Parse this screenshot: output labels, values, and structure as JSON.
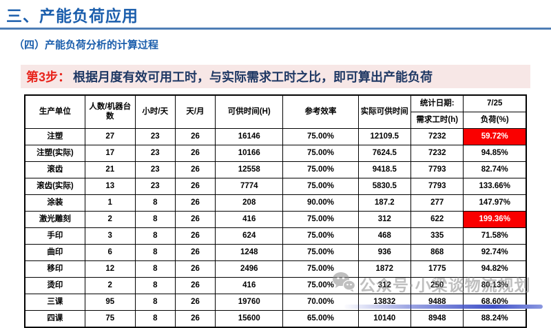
{
  "page": {
    "title": "三、产能负荷应用",
    "subtitle": "（四）产能负荷分析的计算过程",
    "banner": {
      "step_label": "第3步：",
      "text": "根据月度有效可用工时，与实际需求工时之比，即可算出产能负荷"
    }
  },
  "colors": {
    "accent_blue": "#1B5EAC",
    "underline_blue": "#4E7DB5",
    "banner_bg": "#F7E7E6",
    "step_red": "#E8251D",
    "banner_navy": "#1F3864",
    "highlight_red": "#FA0000",
    "watermark_gray": "#8C8C8C",
    "bottom_bar_blue": "#4152C8"
  },
  "table": {
    "headers": {
      "unit": "生产单位",
      "count": "人数/机器台数",
      "hours_per_day": "小时/天",
      "days_per_month": "天/月",
      "available_time": "可供时间(H)",
      "ref_efficiency": "参考效率",
      "actual_available": "实际可供时间",
      "stat_date_label": "统计日期:",
      "stat_date_value": "7/25",
      "demand_hours": "需求工时(h)",
      "load": "负荷(%)"
    },
    "row_keys": [
      "unit",
      "count",
      "hours_per_day",
      "days_per_month",
      "available_time",
      "ref_efficiency",
      "actual_available",
      "demand_hours",
      "load"
    ],
    "rows": [
      {
        "unit": "注塑",
        "count": "27",
        "hours_per_day": "23",
        "days_per_month": "26",
        "available_time": "16146",
        "ref_efficiency": "75.00%",
        "actual_available": "12109.5",
        "demand_hours": "7232",
        "load": "59.72%",
        "load_highlight": true
      },
      {
        "unit": "注塑(实际)",
        "count": "17",
        "hours_per_day": "23",
        "days_per_month": "26",
        "available_time": "10166",
        "ref_efficiency": "75.00%",
        "actual_available": "7624.5",
        "demand_hours": "7232",
        "load": "94.85%",
        "load_highlight": false
      },
      {
        "unit": "滚齿",
        "count": "21",
        "hours_per_day": "23",
        "days_per_month": "26",
        "available_time": "12558",
        "ref_efficiency": "75.00%",
        "actual_available": "9418.5",
        "demand_hours": "7793",
        "load": "82.74%",
        "load_highlight": false
      },
      {
        "unit": "滚齿(实际)",
        "count": "13",
        "hours_per_day": "23",
        "days_per_month": "26",
        "available_time": "7774",
        "ref_efficiency": "75.00%",
        "actual_available": "5830.5",
        "demand_hours": "7793",
        "load": "133.66%",
        "load_highlight": false
      },
      {
        "unit": "涂装",
        "count": "1",
        "hours_per_day": "8",
        "days_per_month": "26",
        "available_time": "208",
        "ref_efficiency": "90.00%",
        "actual_available": "187.2",
        "demand_hours": "277",
        "load": "147.97%",
        "load_highlight": false
      },
      {
        "unit": "激光雕刻",
        "count": "2",
        "hours_per_day": "8",
        "days_per_month": "26",
        "available_time": "416",
        "ref_efficiency": "75.00%",
        "actual_available": "312",
        "demand_hours": "622",
        "load": "199.36%",
        "load_highlight": true
      },
      {
        "unit": "手印",
        "count": "3",
        "hours_per_day": "8",
        "days_per_month": "26",
        "available_time": "624",
        "ref_efficiency": "75.00%",
        "actual_available": "468",
        "demand_hours": "335",
        "load": "71.58%",
        "load_highlight": false
      },
      {
        "unit": "曲印",
        "count": "6",
        "hours_per_day": "8",
        "days_per_month": "26",
        "available_time": "1248",
        "ref_efficiency": "75.00%",
        "actual_available": "936",
        "demand_hours": "868",
        "load": "92.74%",
        "load_highlight": false
      },
      {
        "unit": "移印",
        "count": "12",
        "hours_per_day": "8",
        "days_per_month": "26",
        "available_time": "2496",
        "ref_efficiency": "75.00%",
        "actual_available": "1872",
        "demand_hours": "1775",
        "load": "94.82%",
        "load_highlight": false
      },
      {
        "unit": "烫印",
        "count": "2",
        "hours_per_day": "8",
        "days_per_month": "26",
        "available_time": "416",
        "ref_efficiency": "75.00%",
        "actual_available": "312",
        "demand_hours": "250",
        "load": "80.13%",
        "load_highlight": false
      },
      {
        "unit": "三课",
        "count": "95",
        "hours_per_day": "8",
        "days_per_month": "26",
        "available_time": "19760",
        "ref_efficiency": "70.00%",
        "actual_available": "13832",
        "demand_hours": "9488",
        "load": "68.60%",
        "load_highlight": false
      },
      {
        "unit": "四课",
        "count": "75",
        "hours_per_day": "8",
        "days_per_month": "26",
        "available_time": "15600",
        "ref_efficiency": "65.00%",
        "actual_available": "10140",
        "demand_hours": "8948",
        "load": "88.24%",
        "load_highlight": false
      }
    ]
  },
  "watermark": {
    "icon": "wechat-icon",
    "text": "公众号·小梁谈物流规划"
  }
}
